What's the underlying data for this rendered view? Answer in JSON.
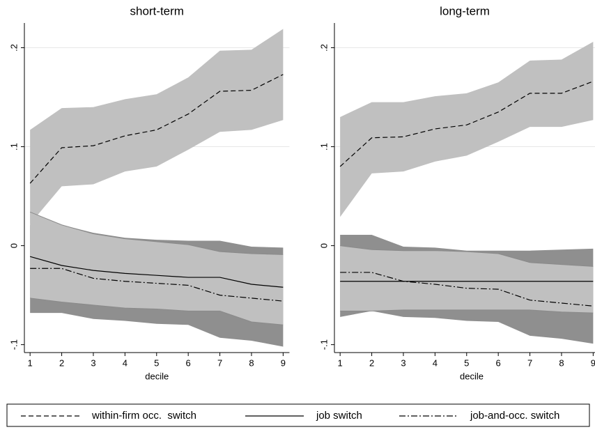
{
  "chart_data": [
    {
      "type": "line",
      "title": "short-term",
      "xlabel": "decile",
      "x": [
        1,
        2,
        3,
        4,
        5,
        6,
        7,
        8,
        9
      ],
      "xlim": [
        0.82,
        9.2
      ],
      "xticks": [
        1,
        2,
        3,
        4,
        5,
        6,
        7,
        8,
        9
      ],
      "ylim": [
        -0.108,
        0.225
      ],
      "yticks": [
        {
          "value": -0.1,
          "label": "-.1"
        },
        0,
        {
          "value": 0.1,
          "label": ".1"
        },
        {
          "value": 0.2,
          "label": ".2"
        }
      ],
      "grid": true,
      "legend": "bottom",
      "series": [
        {
          "name": "within-firm occ.  switch",
          "color": "#000000",
          "dash": "dash",
          "band_color": "#c0c0c0",
          "values": [
            0.063,
            0.099,
            0.101,
            0.111,
            0.117,
            0.133,
            0.156,
            0.157,
            0.173
          ],
          "lower": [
            0.022,
            0.06,
            0.062,
            0.075,
            0.08,
            0.097,
            0.115,
            0.117,
            0.127
          ],
          "upper": [
            0.117,
            0.139,
            0.14,
            0.148,
            0.153,
            0.17,
            0.197,
            0.198,
            0.219
          ]
        },
        {
          "name": "job switch",
          "color": "#000000",
          "dash": "solid",
          "band_color": "#c0c0c0",
          "values": [
            -0.011,
            -0.02,
            -0.025,
            -0.028,
            -0.03,
            -0.032,
            -0.032,
            -0.039,
            -0.042
          ],
          "lower": [
            -0.053,
            -0.057,
            -0.06,
            -0.063,
            -0.064,
            -0.066,
            -0.066,
            -0.077,
            -0.08
          ],
          "upper": [
            0.034,
            0.021,
            0.012,
            0.007,
            0.004,
            0.001,
            -0.006,
            -0.008,
            -0.009
          ]
        },
        {
          "name": "job-and-occ. switch",
          "color": "#000000",
          "dash": "dashdot",
          "band_color": "#8f8f8f",
          "values": [
            -0.023,
            -0.023,
            -0.033,
            -0.036,
            -0.038,
            -0.04,
            -0.05,
            -0.053,
            -0.056
          ],
          "lower": [
            -0.068,
            -0.068,
            -0.074,
            -0.076,
            -0.079,
            -0.08,
            -0.093,
            -0.096,
            -0.102
          ],
          "upper": [
            0.021,
            0.021,
            0.013,
            0.008,
            0.006,
            0.005,
            0.005,
            -0.001,
            -0.002
          ]
        }
      ]
    },
    {
      "type": "line",
      "title": "long-term",
      "xlabel": "decile",
      "x": [
        1,
        2,
        3,
        4,
        5,
        6,
        7,
        8,
        9
      ],
      "xlim": [
        0.82,
        9.2
      ],
      "xticks": [
        1,
        2,
        3,
        4,
        5,
        6,
        7,
        8,
        9
      ],
      "ylim": [
        -0.108,
        0.225
      ],
      "yticks": [
        {
          "value": -0.1,
          "label": "-.1"
        },
        0,
        {
          "value": 0.1,
          "label": ".1"
        },
        {
          "value": 0.2,
          "label": ".2"
        }
      ],
      "grid": true,
      "series": [
        {
          "name": "within-firm occ.  switch",
          "color": "#000000",
          "dash": "dash",
          "band_color": "#c0c0c0",
          "values": [
            0.08,
            0.109,
            0.11,
            0.118,
            0.122,
            0.135,
            0.154,
            0.154,
            0.166
          ],
          "lower": [
            0.029,
            0.073,
            0.075,
            0.085,
            0.091,
            0.105,
            0.12,
            0.12,
            0.127
          ],
          "upper": [
            0.13,
            0.145,
            0.145,
            0.151,
            0.154,
            0.165,
            0.187,
            0.188,
            0.206
          ]
        },
        {
          "name": "job switch",
          "color": "#000000",
          "dash": "solid",
          "band_color": "#c0c0c0",
          "values": [
            -0.036,
            -0.036,
            -0.036,
            -0.036,
            -0.036,
            -0.036,
            -0.036,
            -0.036,
            -0.036
          ],
          "lower": [
            -0.066,
            -0.066,
            -0.065,
            -0.065,
            -0.065,
            -0.065,
            -0.065,
            -0.067,
            -0.068
          ],
          "upper": [
            0.0,
            -0.004,
            -0.005,
            -0.005,
            -0.006,
            -0.008,
            -0.017,
            -0.019,
            -0.021
          ]
        },
        {
          "name": "job-and-occ. switch",
          "color": "#000000",
          "dash": "dashdot",
          "band_color": "#8f8f8f",
          "values": [
            -0.027,
            -0.027,
            -0.036,
            -0.039,
            -0.043,
            -0.044,
            -0.055,
            -0.058,
            -0.061
          ],
          "lower": [
            -0.072,
            -0.066,
            -0.072,
            -0.073,
            -0.076,
            -0.077,
            -0.091,
            -0.094,
            -0.099
          ],
          "upper": [
            0.011,
            0.011,
            -0.001,
            -0.002,
            -0.005,
            -0.005,
            -0.005,
            -0.004,
            -0.003
          ]
        }
      ]
    }
  ]
}
